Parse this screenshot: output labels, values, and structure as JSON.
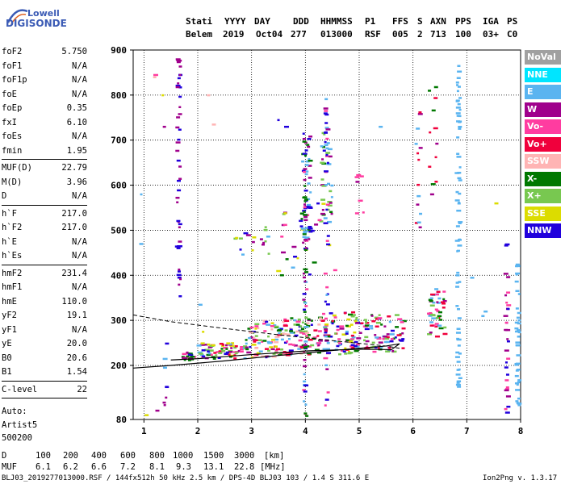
{
  "logo": {
    "line1": "Lowell",
    "line2": "DIGISONDE"
  },
  "header": {
    "labels": [
      "Stati",
      "YYYY",
      "DAY",
      "DDD",
      "HHMMSS",
      "P1",
      "FFS",
      "S",
      "AXN",
      "PPS",
      "IGA",
      "PS"
    ],
    "values": [
      "Belem",
      "2019",
      "Oct04",
      "277",
      "013000",
      "RSF",
      "005",
      "2",
      "713",
      "100",
      "03+",
      "C0"
    ]
  },
  "params": {
    "group1": [
      {
        "k": "foF2",
        "v": "5.750"
      },
      {
        "k": "foF1",
        "v": "N/A"
      },
      {
        "k": "foF1p",
        "v": "N/A"
      },
      {
        "k": "foE",
        "v": "N/A"
      },
      {
        "k": "foEp",
        "v": "0.35"
      },
      {
        "k": "fxI",
        "v": "6.10"
      },
      {
        "k": "foEs",
        "v": "N/A"
      },
      {
        "k": "fmin",
        "v": "1.95"
      }
    ],
    "group2": [
      {
        "k": "MUF(D)",
        "v": "22.79"
      },
      {
        "k": "M(D)",
        "v": "3.96"
      },
      {
        "k": "D",
        "v": "N/A"
      }
    ],
    "group3": [
      {
        "k": "h`F",
        "v": "217.0"
      },
      {
        "k": "h`F2",
        "v": "217.0"
      },
      {
        "k": "h`E",
        "v": "N/A"
      },
      {
        "k": "h`Es",
        "v": "N/A"
      }
    ],
    "group4": [
      {
        "k": "hmF2",
        "v": "231.4"
      },
      {
        "k": "hmF1",
        "v": "N/A"
      },
      {
        "k": "hmE",
        "v": "110.0"
      },
      {
        "k": "yF2",
        "v": "19.1"
      },
      {
        "k": "yF1",
        "v": "N/A"
      },
      {
        "k": "yE",
        "v": "20.0"
      },
      {
        "k": "B0",
        "v": "20.6"
      },
      {
        "k": "B1",
        "v": "1.54"
      }
    ],
    "group5": [
      {
        "k": "C-level",
        "v": "22"
      }
    ],
    "auto": [
      "Auto:",
      "Artist5",
      "500200"
    ]
  },
  "legend": [
    {
      "label": "NoVal",
      "color": "#a0a0a0"
    },
    {
      "label": "NNE",
      "color": "#00e5ff"
    },
    {
      "label": "E",
      "color": "#5ab4f0"
    },
    {
      "label": "W",
      "color": "#a0008c"
    },
    {
      "label": "Vo-",
      "color": "#ff3ca0"
    },
    {
      "label": "Vo+",
      "color": "#f0003c"
    },
    {
      "label": "SSW",
      "color": "#ffb4b4"
    },
    {
      "label": "X-",
      "color": "#007800"
    },
    {
      "label": "X+",
      "color": "#78c850"
    },
    {
      "label": "SSE",
      "color": "#dcdc00"
    },
    {
      "label": "NNW",
      "color": "#2000dc"
    }
  ],
  "chart_data": {
    "type": "scatter",
    "xlim": [
      0.8,
      8
    ],
    "ylim": [
      80,
      900
    ],
    "xticks": [
      "1",
      "2",
      "3",
      "4",
      "5",
      "6",
      "7",
      "8"
    ],
    "yticks": [
      "80",
      "200",
      "300",
      "400",
      "500",
      "600",
      "700",
      "800",
      "900"
    ],
    "grid": true,
    "profile_line": [
      [
        0.8,
        194
      ],
      [
        1.5,
        200
      ],
      [
        2.5,
        210
      ],
      [
        3.5,
        222
      ],
      [
        4.5,
        233
      ],
      [
        5.5,
        243
      ],
      [
        5.75,
        248
      ],
      [
        5.6,
        235
      ],
      [
        5.0,
        236
      ],
      [
        4.0,
        232
      ],
      [
        3.0,
        224
      ],
      [
        2.0,
        215
      ],
      [
        1.5,
        212
      ]
    ],
    "dashed_line": [
      [
        0.8,
        312
      ],
      [
        1.5,
        297
      ],
      [
        2.5,
        282
      ],
      [
        3.5,
        268
      ],
      [
        4.5,
        255
      ],
      [
        5.5,
        243
      ],
      [
        5.75,
        238
      ]
    ],
    "echo_clusters": [
      {
        "x": [
          1.7,
          1.95
        ],
        "y": [
          210,
          230
        ],
        "colors": [
          "#2000dc",
          "#a0008c",
          "#007800",
          "#ff3ca0"
        ],
        "n": 20
      },
      {
        "x": [
          2.0,
          2.9
        ],
        "y": [
          215,
          250
        ],
        "colors": [
          "#ff3ca0",
          "#f0003c",
          "#a0008c",
          "#5ab4f0",
          "#007800",
          "#78c850",
          "#dcdc00",
          "#2000dc"
        ],
        "n": 70
      },
      {
        "x": [
          2.9,
          3.6
        ],
        "y": [
          218,
          300
        ],
        "colors": [
          "#ff3ca0",
          "#f0003c",
          "#a0008c",
          "#5ab4f0",
          "#007800",
          "#78c850",
          "#dcdc00",
          "#2000dc",
          "#ffb4b4"
        ],
        "n": 90
      },
      {
        "x": [
          3.6,
          4.3
        ],
        "y": [
          220,
          310
        ],
        "colors": [
          "#ff3ca0",
          "#f0003c",
          "#a0008c",
          "#5ab4f0",
          "#007800",
          "#78c850",
          "#2000dc",
          "#ffb4b4"
        ],
        "n": 90
      },
      {
        "x": [
          4.3,
          5.0
        ],
        "y": [
          225,
          320
        ],
        "colors": [
          "#ff3ca0",
          "#f0003c",
          "#a0008c",
          "#5ab4f0",
          "#007800",
          "#78c850",
          "#dcdc00",
          "#2000dc"
        ],
        "n": 90
      },
      {
        "x": [
          5.0,
          5.85
        ],
        "y": [
          230,
          315
        ],
        "colors": [
          "#ff3ca0",
          "#f0003c",
          "#a0008c",
          "#5ab4f0",
          "#007800",
          "#78c850",
          "#2000dc"
        ],
        "n": 80
      },
      {
        "x": [
          6.3,
          6.6
        ],
        "y": [
          260,
          370
        ],
        "colors": [
          "#f0003c",
          "#ff3ca0",
          "#007800",
          "#78c850",
          "#a0008c",
          "#5ab4f0"
        ],
        "n": 50
      },
      {
        "x": [
          2.6,
          3.4
        ],
        "y": [
          440,
          510
        ],
        "colors": [
          "#78c850",
          "#dcdc00",
          "#5ab4f0",
          "#a0008c",
          "#2000dc"
        ],
        "n": 18
      },
      {
        "x": [
          3.5,
          4.6
        ],
        "y": [
          400,
          560
        ],
        "colors": [
          "#2000dc",
          "#007800",
          "#78c850",
          "#a0008c",
          "#5ab4f0",
          "#dcdc00",
          "#ff3ca0"
        ],
        "n": 40
      },
      {
        "x": [
          3.95,
          4.1
        ],
        "y": [
          470,
          720
        ],
        "colors": [
          "#2000dc",
          "#007800",
          "#a0008c",
          "#5ab4f0"
        ],
        "n": 40
      },
      {
        "x": [
          4.3,
          4.5
        ],
        "y": [
          480,
          720
        ],
        "colors": [
          "#2000dc",
          "#007800",
          "#78c850",
          "#a0008c",
          "#5ab4f0"
        ],
        "n": 30
      },
      {
        "x": [
          6.05,
          6.15
        ],
        "y": [
          490,
          790
        ],
        "colors": [
          "#a0008c",
          "#f0003c",
          "#5ab4f0"
        ],
        "n": 14
      },
      {
        "x": [
          6.3,
          6.45
        ],
        "y": [
          520,
          840
        ],
        "colors": [
          "#a0008c",
          "#f0003c",
          "#007800"
        ],
        "n": 12
      },
      {
        "x": [
          4.95,
          5.1
        ],
        "y": [
          520,
          660
        ],
        "colors": [
          "#a0008c",
          "#ff3ca0"
        ],
        "n": 6
      }
    ],
    "echo_columns": [
      {
        "x": 1.65,
        "y": [
          300,
          900
        ],
        "colors": [
          "#2000dc",
          "#a0008c"
        ],
        "n": 45
      },
      {
        "x": 4.0,
        "y": [
          85,
          700
        ],
        "colors": [
          "#2000dc",
          "#a0008c",
          "#007800",
          "#5ab4f0",
          "#ff3ca0"
        ],
        "n": 60
      },
      {
        "x": 4.4,
        "y": [
          100,
          800
        ],
        "colors": [
          "#2000dc",
          "#a0008c",
          "#5ab4f0",
          "#ff3ca0"
        ],
        "n": 40
      },
      {
        "x": 6.85,
        "y": [
          130,
          870
        ],
        "colors": [
          "#5ab4f0"
        ],
        "n": 70
      },
      {
        "x": 7.75,
        "y": [
          85,
          470
        ],
        "colors": [
          "#a0008c",
          "#ff3ca0",
          "#2000dc"
        ],
        "n": 30
      },
      {
        "x": 7.95,
        "y": [
          100,
          430
        ],
        "colors": [
          "#5ab4f0"
        ],
        "n": 40
      },
      {
        "x": 1.4,
        "y": [
          90,
          260
        ],
        "colors": [
          "#2000dc",
          "#a0008c",
          "#5ab4f0"
        ],
        "n": 8
      }
    ],
    "sparse_points": [
      {
        "x": 0.95,
        "y": 580,
        "c": "#5ab4f0"
      },
      {
        "x": 0.95,
        "y": 470,
        "c": "#5ab4f0"
      },
      {
        "x": 1.2,
        "y": 840,
        "c": "#ffb4b4"
      },
      {
        "x": 1.22,
        "y": 845,
        "c": "#ff3ca0"
      },
      {
        "x": 1.35,
        "y": 800,
        "c": "#dcdc00"
      },
      {
        "x": 1.38,
        "y": 730,
        "c": "#a0008c"
      },
      {
        "x": 2.2,
        "y": 800,
        "c": "#ffb4b4"
      },
      {
        "x": 2.3,
        "y": 735,
        "c": "#ffb4b4"
      },
      {
        "x": 3.5,
        "y": 745,
        "c": "#2000dc"
      },
      {
        "x": 3.65,
        "y": 730,
        "c": "#2000dc"
      },
      {
        "x": 5.4,
        "y": 730,
        "c": "#5ab4f0"
      },
      {
        "x": 5.05,
        "y": 620,
        "c": "#ff3ca0"
      },
      {
        "x": 7.1,
        "y": 395,
        "c": "#5ab4f0"
      },
      {
        "x": 7.3,
        "y": 310,
        "c": "#5ab4f0"
      },
      {
        "x": 7.35,
        "y": 320,
        "c": "#5ab4f0"
      },
      {
        "x": 7.55,
        "y": 560,
        "c": "#dcdc00"
      },
      {
        "x": 1.05,
        "y": 90,
        "c": "#dcdc00"
      },
      {
        "x": 1.25,
        "y": 100,
        "c": "#a0008c"
      },
      {
        "x": 2.05,
        "y": 335,
        "c": "#5ab4f0"
      },
      {
        "x": 2.1,
        "y": 275,
        "c": "#dcdc00"
      }
    ]
  },
  "footer": {
    "d_label": "D",
    "d_values": [
      "100",
      "200",
      "400",
      "600",
      "800",
      "1000",
      "1500",
      "3000"
    ],
    "d_unit": "[km]",
    "muf_label": "MUF",
    "muf_values": [
      "6.1",
      "6.2",
      "6.6",
      "7.2",
      "8.1",
      "9.3",
      "13.1",
      "22.8"
    ],
    "muf_unit": "[MHz]",
    "file_info": "BLJ03_2019277013000.RSF / 144fx512h 50 kHz 2.5 km / DPS-4D BLJ03 103 / 1.4 S 311.6 E",
    "version": "Ion2Png v. 1.3.17"
  }
}
